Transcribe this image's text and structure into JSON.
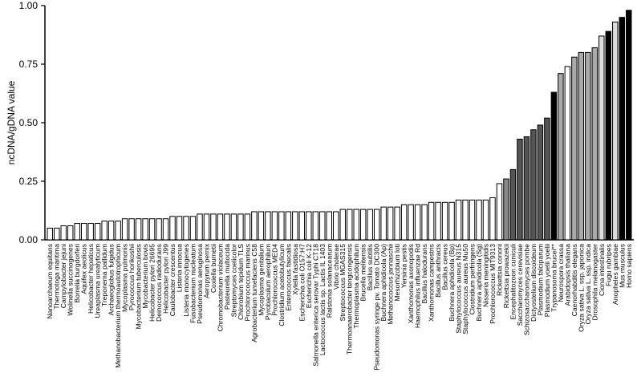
{
  "chart_data": {
    "type": "bar",
    "y_label": "ncDNA/gDNA value",
    "categories": [
      "Nanoarchaeum equitans",
      "Thermotoga maritima",
      "Campylobacter jejuni",
      "Wolinella succinogenes",
      "Borrelia burgdorferi",
      "Aquifex aeolicus",
      "Helicobacter hepaticus",
      "Ureaplasma urealyticum",
      "Treponema pallidum",
      "Archaeoglobus fulgidus",
      "Methanobacterium thermoautotrophicum",
      "Mycoplasma pulmonis",
      "Pyrococcus horikoshii",
      "Mycobacterium tuberculosis",
      "Mycobacterium bovis",
      "Helicobacter pylori 26695",
      "Deinococcus radiodurans",
      "Helicobacter pylori J99",
      "Caulobacter crescentus",
      "Listeria innocua",
      "Listeria monocytogenes",
      "Fusobacterium nucleatum",
      "Pseudomonas aeruginosa",
      "Aeropyrum pernix",
      "Coxiella burnetii",
      "Chromobacterium violaceum",
      "Pasteurella multocida",
      "Streptomyces coelicolor",
      "Chlorobium tepidum TLS",
      "Prochlorococcus marinus",
      "Agrobacterium tumefaciens C58",
      "Mycoplasma genitalium",
      "Pyrobaculum aerophilum",
      "Prochlorococcus MED4",
      "Clostridium acetobutylicum",
      "Enterococcus faecalis",
      "Xylella fastidiosa",
      "Escherichia coli O157:H7",
      "Escherichia coli K-12",
      "Salmonella enterica serovar Typhi CT18",
      "Lactococcus lactis sp. Lactis IL 1403",
      "Ralstonia solanacearum",
      "Vibrio cholerae",
      "Streptococcus MGAS315",
      "Thermoanaerobacter tengcongensis",
      "Thermoplasma acidophilum",
      "Brucella melitensis",
      "Bacillus subtilis",
      "Pseudomonas syringe pv. Tomato DC300",
      "Buchnera aphidicola (Ap)",
      "Methanococcus jannaschii",
      "Mesorhizobium loti",
      "Yersinia pestis",
      "Xanthomonas axonopodis",
      "Haemophilus influenzae Rd",
      "Bacillus halodurans",
      "Xanthomonas campestris",
      "Bacillus anthracis",
      "Bacillus cereus",
      "Buchnera aphidicola (Bp)",
      "Staphylococcus aureus N315",
      "Staphylococcus aureus Mu50",
      "Clostridium perfringens",
      "Buchnera aphidicola (Sg)",
      "Nisseria meningitidis",
      "Prochlorococcus MIT9313",
      "Rickettsia conorii",
      "Rickettsia prowazekii",
      "Encephalitozoon cuniculi",
      "Saccharomyces cerevisiae",
      "Schizosaccharomyces pombe",
      "Dictyostelium discoideum",
      "Plasmodium falciparum",
      "Plasmodium yoelii yoelii",
      "Trypanosoma brucei**",
      "Neurospora crassa",
      "Arabidopsis thaliana",
      "Caenorhabditis elegans",
      "Oryza sativa L. ssp. japonica",
      "Oryza sativa L. ssp. indica",
      "Drosophila melanogaster",
      "Ciona intestinalis",
      "Fugu rubripes",
      "Anopheles gambiae",
      "Mus musculus",
      "Homo sapiens"
    ],
    "values": [
      0.05,
      0.05,
      0.06,
      0.06,
      0.07,
      0.07,
      0.07,
      0.07,
      0.08,
      0.08,
      0.08,
      0.09,
      0.09,
      0.09,
      0.09,
      0.09,
      0.09,
      0.09,
      0.1,
      0.1,
      0.1,
      0.1,
      0.11,
      0.11,
      0.11,
      0.11,
      0.11,
      0.11,
      0.11,
      0.11,
      0.12,
      0.12,
      0.12,
      0.12,
      0.12,
      0.12,
      0.12,
      0.12,
      0.12,
      0.12,
      0.12,
      0.12,
      0.12,
      0.13,
      0.13,
      0.13,
      0.13,
      0.13,
      0.13,
      0.14,
      0.14,
      0.14,
      0.15,
      0.15,
      0.15,
      0.15,
      0.16,
      0.16,
      0.16,
      0.16,
      0.17,
      0.17,
      0.17,
      0.17,
      0.17,
      0.18,
      0.24,
      0.26,
      0.3,
      0.43,
      0.44,
      0.47,
      0.49,
      0.52,
      0.63,
      0.71,
      0.74,
      0.78,
      0.8,
      0.8,
      0.82,
      0.87,
      0.89,
      0.93,
      0.95,
      0.98
    ],
    "colors": [
      "#ffffff",
      "#ffffff",
      "#ffffff",
      "#ffffff",
      "#ffffff",
      "#ffffff",
      "#ffffff",
      "#ffffff",
      "#ffffff",
      "#ffffff",
      "#ffffff",
      "#ffffff",
      "#ffffff",
      "#ffffff",
      "#ffffff",
      "#ffffff",
      "#ffffff",
      "#ffffff",
      "#ffffff",
      "#ffffff",
      "#ffffff",
      "#ffffff",
      "#ffffff",
      "#ffffff",
      "#ffffff",
      "#ffffff",
      "#ffffff",
      "#ffffff",
      "#ffffff",
      "#ffffff",
      "#ffffff",
      "#ffffff",
      "#ffffff",
      "#ffffff",
      "#ffffff",
      "#ffffff",
      "#ffffff",
      "#ffffff",
      "#ffffff",
      "#ffffff",
      "#ffffff",
      "#ffffff",
      "#ffffff",
      "#ffffff",
      "#ffffff",
      "#ffffff",
      "#ffffff",
      "#ffffff",
      "#ffffff",
      "#ffffff",
      "#ffffff",
      "#ffffff",
      "#ffffff",
      "#ffffff",
      "#ffffff",
      "#ffffff",
      "#ffffff",
      "#ffffff",
      "#ffffff",
      "#ffffff",
      "#ffffff",
      "#ffffff",
      "#ffffff",
      "#ffffff",
      "#ffffff",
      "#ffffff",
      "#ffffff",
      "#888888",
      "#555555",
      "#555555",
      "#555555",
      "#555555",
      "#555555",
      "#555555",
      "#000000",
      "#aaaaaa",
      "#ffffff",
      "#aaaaaa",
      "#aaaaaa",
      "#aaaaaa",
      "#aaaaaa",
      "#dddddd",
      "#000000",
      "#dddddd",
      "#000000",
      "#000000"
    ],
    "ylim": [
      0,
      1
    ],
    "yticks": [
      {
        "value": 0,
        "label": "0.00"
      },
      {
        "value": 0.25,
        "label": "0.25"
      },
      {
        "value": 0.5,
        "label": "0.50"
      },
      {
        "value": 0.75,
        "label": "0.75"
      },
      {
        "value": 1,
        "label": "1.00"
      }
    ]
  }
}
